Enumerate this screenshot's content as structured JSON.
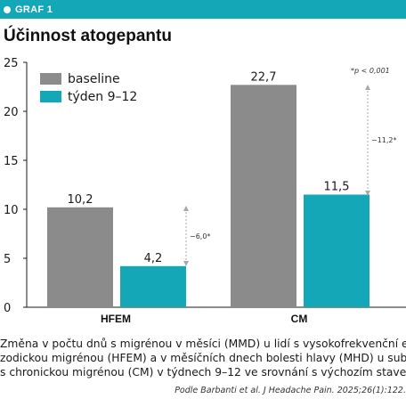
{
  "header": {
    "label": "GRAF 1"
  },
  "colors": {
    "accent": "#14a7b8",
    "baseline": "#8b8b8b",
    "treatment": "#14a7b8",
    "arrow": "#a8a8a8"
  },
  "chart_data": {
    "type": "bar",
    "title": "Účinnost atogepantu",
    "categories": [
      "HFEM",
      "CM"
    ],
    "series": [
      {
        "name": "baseline",
        "values": [
          10.2,
          22.7
        ],
        "labels": [
          "10,2",
          "22,7"
        ]
      },
      {
        "name": "týden 9–12",
        "values": [
          4.2,
          11.5
        ],
        "labels": [
          "4,2",
          "11,5"
        ]
      }
    ],
    "y_ticks": [
      "0",
      "5",
      "10",
      "15",
      "20",
      "25"
    ],
    "ylim": [
      0,
      25
    ],
    "grid": false,
    "legend": "top-left",
    "annotations": {
      "hfem_diff": "−6,0*",
      "cm_diff": "−11,2*",
      "pvalue": "*p < 0,001"
    }
  },
  "caption": {
    "line1": "Změna v počtu dnů s migrénou v měsíci (MMD) u lidí s vysokofrekvenční epi-",
    "line2": "zodickou migrénou (HFEM) a v měsíčních dnech bolesti hlavy (MHD) u subjektů",
    "line3": "s chronickou migrénou (CM) v týdnech 9–12 ve srovnání s výchozím stavem."
  },
  "source": "Podle Barbanti et al. J Headache Pain. 2025;26(1):122."
}
